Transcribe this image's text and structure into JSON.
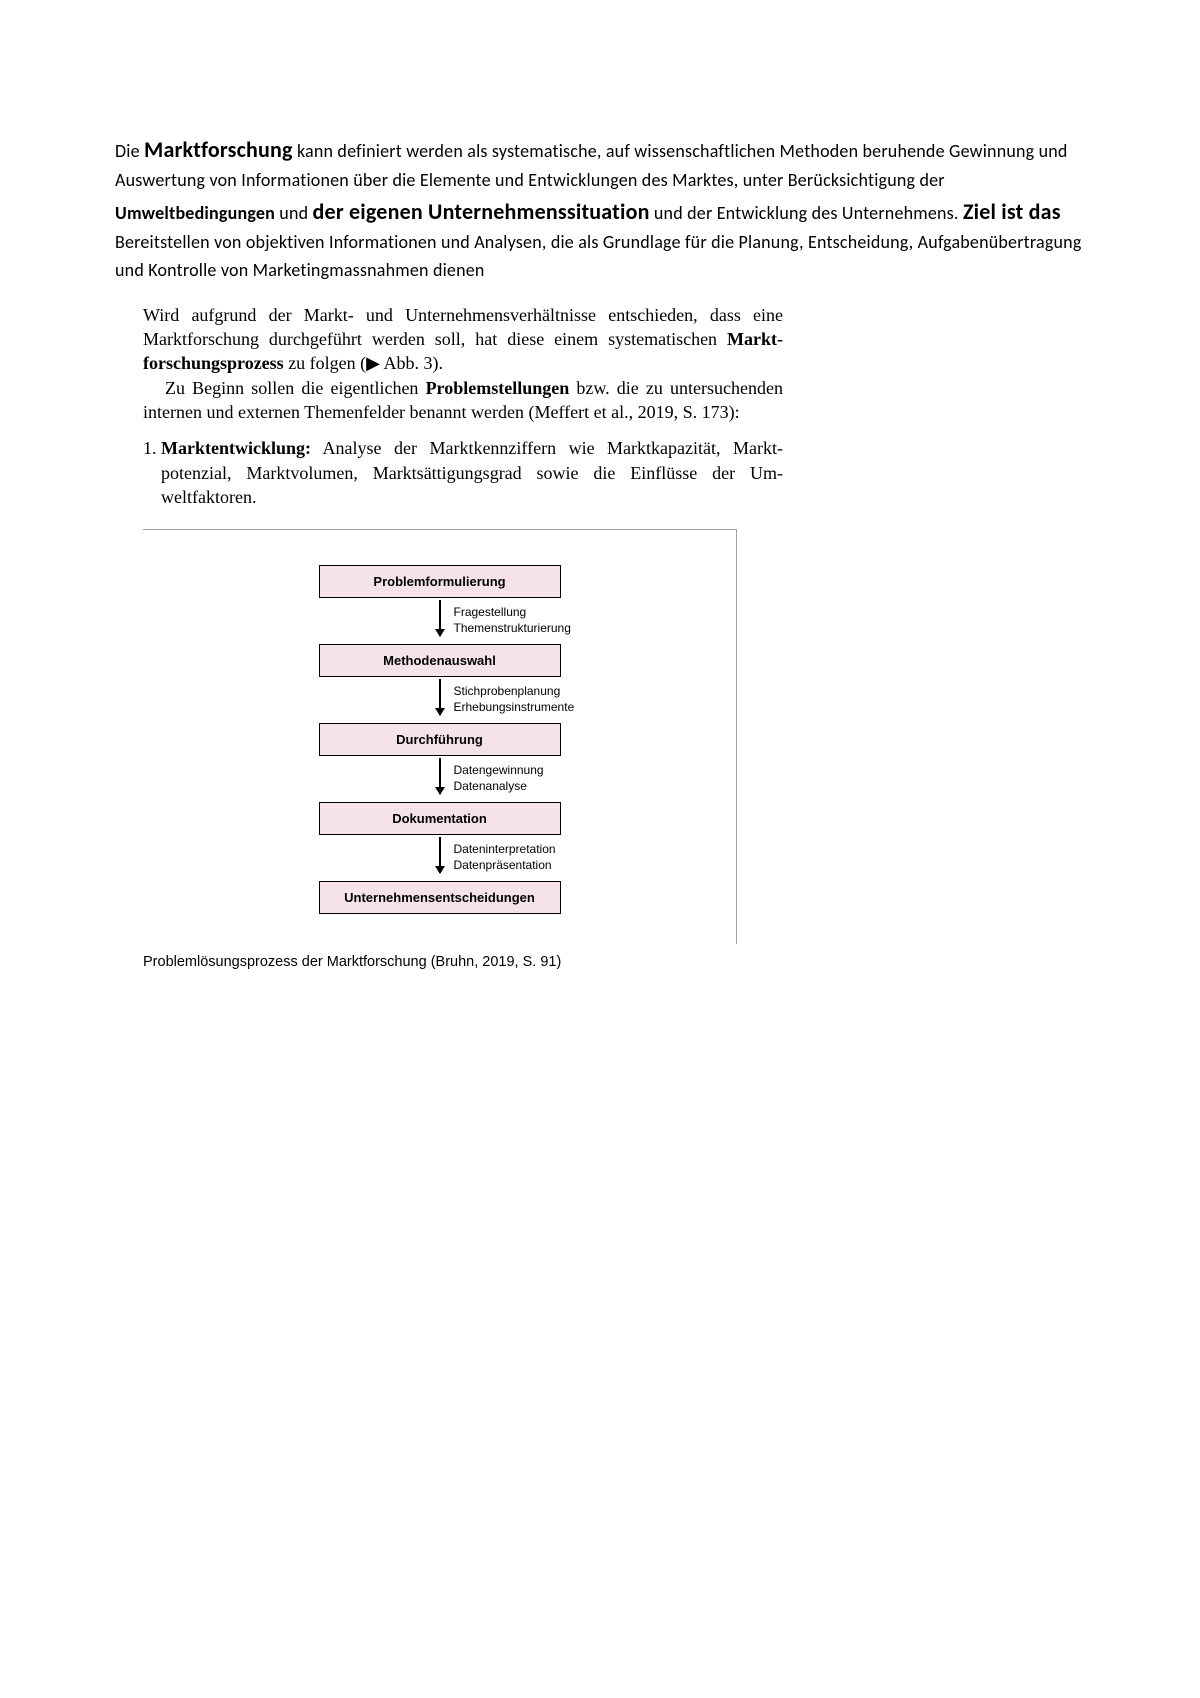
{
  "para1": {
    "pre": "Die ",
    "h1": "Marktforschung",
    "mid1": " kann definiert werden als systematische, auf wissenschaftlichen Methoden beruhende Gewinnung und Auswertung von Informationen über die Elemente und Entwicklungen des Marktes, unter Berücksichtigung der ",
    "b1": "Umweltbedingungen",
    "mid2": " und ",
    "b2": "der eigenen Unternehmenssituation",
    "mid3": " und der Entwicklung des Unternehmens. ",
    "b3": "Ziel ist das",
    "tail": " Bereitstellen von objektiven Informationen und Analysen, die als Grundlage für die Planung, Entscheidung, Aufgabenübertragung und Kontrolle von Marketingmassnahmen dienen"
  },
  "serif1": {
    "p1a": "Wird aufgrund der Markt- und Unternehmensverhältnisse entschieden, dass eine Marktforschung durchgeführt werden soll, hat diese einem systematischen ",
    "p1b": "Markt­forschungsprozess",
    "p1c": " zu folgen (▶ Abb. 3).",
    "p2a": "Zu Beginn sollen die eigentlichen ",
    "p2b": "Problemstellungen",
    "p2c": " bzw. die zu untersuchen­den internen und externen Themenfelder benannt werden (Meffert et al., 2019, S. 173):"
  },
  "list1": {
    "num": "1.",
    "title": "Marktentwicklung:",
    "body": " Analyse der Marktkennziffern wie Marktkapazität, Markt­potenzial, Marktvolumen, Marktsättigungsgrad sowie die Einflüsse der Um­weltfaktoren."
  },
  "flow": {
    "box_bg": "#f6e3ea",
    "box_border": "#000000",
    "steps": [
      {
        "label": "Problemformulierung",
        "sub1": "Fragestellung",
        "sub2": "Themenstrukturierung"
      },
      {
        "label": "Methodenauswahl",
        "sub1": "Stichprobenplanung",
        "sub2": "Erhebungsinstrumente"
      },
      {
        "label": "Durchführung",
        "sub1": "Datengewinnung",
        "sub2": "Datenanalyse"
      },
      {
        "label": "Dokumentation",
        "sub1": "Dateninterpretation",
        "sub2": "Datenpräsentation"
      },
      {
        "label": "Unternehmensentscheidungen"
      }
    ]
  },
  "caption": "Problemlösungsprozess der Marktforschung (Bruhn, 2019, S. 91)"
}
